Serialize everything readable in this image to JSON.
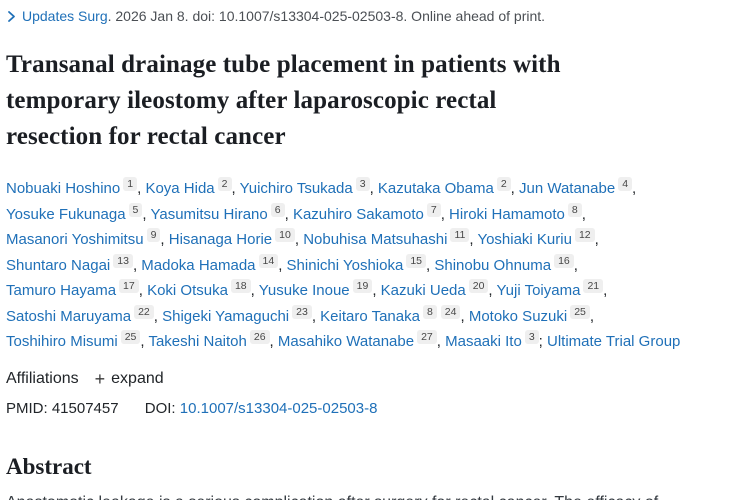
{
  "journal_bar": {
    "journal_link": "Updates Surg",
    "citation_text": ". 2026 Jan 8. doi: 10.1007/s13304-025-02503-8. Online ahead of print."
  },
  "title": "Transanal drainage tube placement in patients with\ntemporary ileostomy after laparoscopic rectal\nresection for rectal cancer",
  "authors": {
    "lines": [
      {
        "items": [
          {
            "name": "Nobuaki Hoshino",
            "sups": [
              "1"
            ]
          },
          {
            "name": "Koya Hida",
            "sups": [
              "2"
            ]
          },
          {
            "name": "Yuichiro Tsukada",
            "sups": [
              "3"
            ]
          },
          {
            "name": "Kazutaka Obama",
            "sups": [
              "2"
            ]
          },
          {
            "name": "Jun Watanabe",
            "sups": [
              "4"
            ]
          }
        ],
        "trail": ","
      },
      {
        "items": [
          {
            "name": "Yosuke Fukunaga",
            "sups": [
              "5"
            ]
          },
          {
            "name": "Yasumitsu Hirano",
            "sups": [
              "6"
            ]
          },
          {
            "name": "Kazuhiro Sakamoto",
            "sups": [
              "7"
            ]
          },
          {
            "name": "Hiroki Hamamoto",
            "sups": [
              "8"
            ]
          }
        ],
        "trail": ","
      },
      {
        "items": [
          {
            "name": "Masanori Yoshimitsu",
            "sups": [
              "9"
            ]
          },
          {
            "name": "Hisanaga Horie",
            "sups": [
              "10"
            ]
          },
          {
            "name": "Nobuhisa Matsuhashi",
            "sups": [
              "11"
            ]
          },
          {
            "name": "Yoshiaki Kuriu",
            "sups": [
              "12"
            ]
          }
        ],
        "trail": ","
      },
      {
        "items": [
          {
            "name": "Shuntaro Nagai",
            "sups": [
              "13"
            ]
          },
          {
            "name": "Madoka Hamada",
            "sups": [
              "14"
            ]
          },
          {
            "name": "Shinichi Yoshioka",
            "sups": [
              "15"
            ]
          },
          {
            "name": "Shinobu Ohnuma",
            "sups": [
              "16"
            ]
          }
        ],
        "trail": ","
      },
      {
        "items": [
          {
            "name": "Tamuro Hayama",
            "sups": [
              "17"
            ]
          },
          {
            "name": "Koki Otsuka",
            "sups": [
              "18"
            ]
          },
          {
            "name": "Yusuke Inoue",
            "sups": [
              "19"
            ]
          },
          {
            "name": "Kazuki Ueda",
            "sups": [
              "20"
            ]
          },
          {
            "name": "Yuji Toiyama",
            "sups": [
              "21"
            ]
          }
        ],
        "trail": ","
      },
      {
        "items": [
          {
            "name": "Satoshi Maruyama",
            "sups": [
              "22"
            ]
          },
          {
            "name": "Shigeki Yamaguchi",
            "sups": [
              "23"
            ]
          },
          {
            "name": "Keitaro Tanaka",
            "sups": [
              "8",
              "24"
            ]
          },
          {
            "name": "Motoko Suzuki",
            "sups": [
              "25"
            ]
          }
        ],
        "trail": ","
      },
      {
        "items": [
          {
            "name": "Toshihiro Misumi",
            "sups": [
              "25"
            ]
          },
          {
            "name": "Takeshi Naitoh",
            "sups": [
              "26"
            ]
          },
          {
            "name": "Masahiko Watanabe",
            "sups": [
              "27"
            ]
          },
          {
            "name": "Masaaki Ito",
            "sups": [
              "3"
            ]
          }
        ],
        "trail": ";",
        "group": "Ultimate Trial Group"
      }
    ]
  },
  "affiliations": {
    "label": "Affiliations",
    "plus_icon": "+",
    "expand_label": "expand"
  },
  "ids": {
    "pmid_label": "PMID:",
    "pmid_value": "41507457",
    "doi_label": "DOI:",
    "doi_value": "10.1007/s13304-025-02503-8"
  },
  "abstract": {
    "heading": "Abstract",
    "first_line": "Anastomotic leakage is a serious complication after surgery for rectal cancer. The efficacy of"
  },
  "colors": {
    "link_blue": "#1f70b8",
    "text_dark": "#212529",
    "citation_gray": "#4b4f54",
    "badge_bg": "#efefef",
    "background": "#ffffff"
  }
}
